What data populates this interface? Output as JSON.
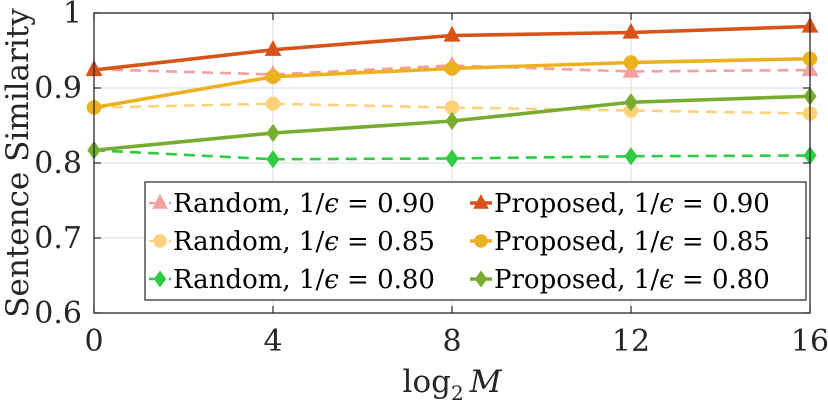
{
  "chart_data": {
    "type": "line",
    "xlabel_base": "log",
    "xlabel_sub": "2",
    "xlabel_var": "M",
    "ylabel": "Sentence Similarity",
    "xlim": [
      0,
      16
    ],
    "ylim": [
      0.6,
      1.0
    ],
    "x_ticks": [
      0,
      4,
      8,
      12,
      16
    ],
    "x_tick_labels": [
      "0",
      "4",
      "8",
      "12",
      "16"
    ],
    "y_ticks": [
      0.6,
      0.7,
      0.8,
      0.9,
      1.0
    ],
    "y_tick_labels": [
      "0.6",
      "0.7",
      "0.8",
      "0.9",
      "1"
    ],
    "grid": true,
    "legend_position": "bottom-right",
    "x": [
      0,
      4,
      8,
      12,
      16
    ],
    "series": [
      {
        "name": "Random, 1/ϵ = 0.90",
        "prefix": "Random, 1/",
        "eps": "ϵ",
        "suffix": " = 0.90",
        "color": "#F4A0A0",
        "style": "dashed",
        "marker": "triangle",
        "values": [
          0.925,
          0.918,
          0.93,
          0.922,
          0.924
        ]
      },
      {
        "name": "Proposed, 1/ϵ = 0.90",
        "prefix": "Proposed, 1/",
        "eps": "ϵ",
        "suffix": " = 0.90",
        "color": "#D95319",
        "style": "solid",
        "marker": "triangle",
        "values": [
          0.924,
          0.951,
          0.97,
          0.974,
          0.982
        ]
      },
      {
        "name": "Random, 1/ϵ = 0.85",
        "prefix": "Random, 1/",
        "eps": "ϵ",
        "suffix": " = 0.85",
        "color": "#FFD27A",
        "style": "dashed",
        "marker": "circle",
        "values": [
          0.874,
          0.879,
          0.874,
          0.87,
          0.866
        ]
      },
      {
        "name": "Proposed, 1/ϵ = 0.85",
        "prefix": "Proposed, 1/",
        "eps": "ϵ",
        "suffix": " = 0.85",
        "color": "#EDB120",
        "style": "solid",
        "marker": "circle",
        "values": [
          0.874,
          0.915,
          0.926,
          0.934,
          0.939
        ]
      },
      {
        "name": "Random, 1/ϵ = 0.80",
        "prefix": "Random, 1/",
        "eps": "ϵ",
        "suffix": " = 0.80",
        "color": "#2ECC40",
        "style": "dashed",
        "marker": "diamond",
        "values": [
          0.817,
          0.805,
          0.806,
          0.809,
          0.81
        ]
      },
      {
        "name": "Proposed, 1/ϵ = 0.80",
        "prefix": "Proposed, 1/",
        "eps": "ϵ",
        "suffix": " = 0.80",
        "color": "#77AC30",
        "style": "solid",
        "marker": "diamond",
        "values": [
          0.817,
          0.84,
          0.856,
          0.881,
          0.889
        ]
      }
    ],
    "legend_order": [
      0,
      1,
      2,
      3,
      4,
      5
    ]
  }
}
